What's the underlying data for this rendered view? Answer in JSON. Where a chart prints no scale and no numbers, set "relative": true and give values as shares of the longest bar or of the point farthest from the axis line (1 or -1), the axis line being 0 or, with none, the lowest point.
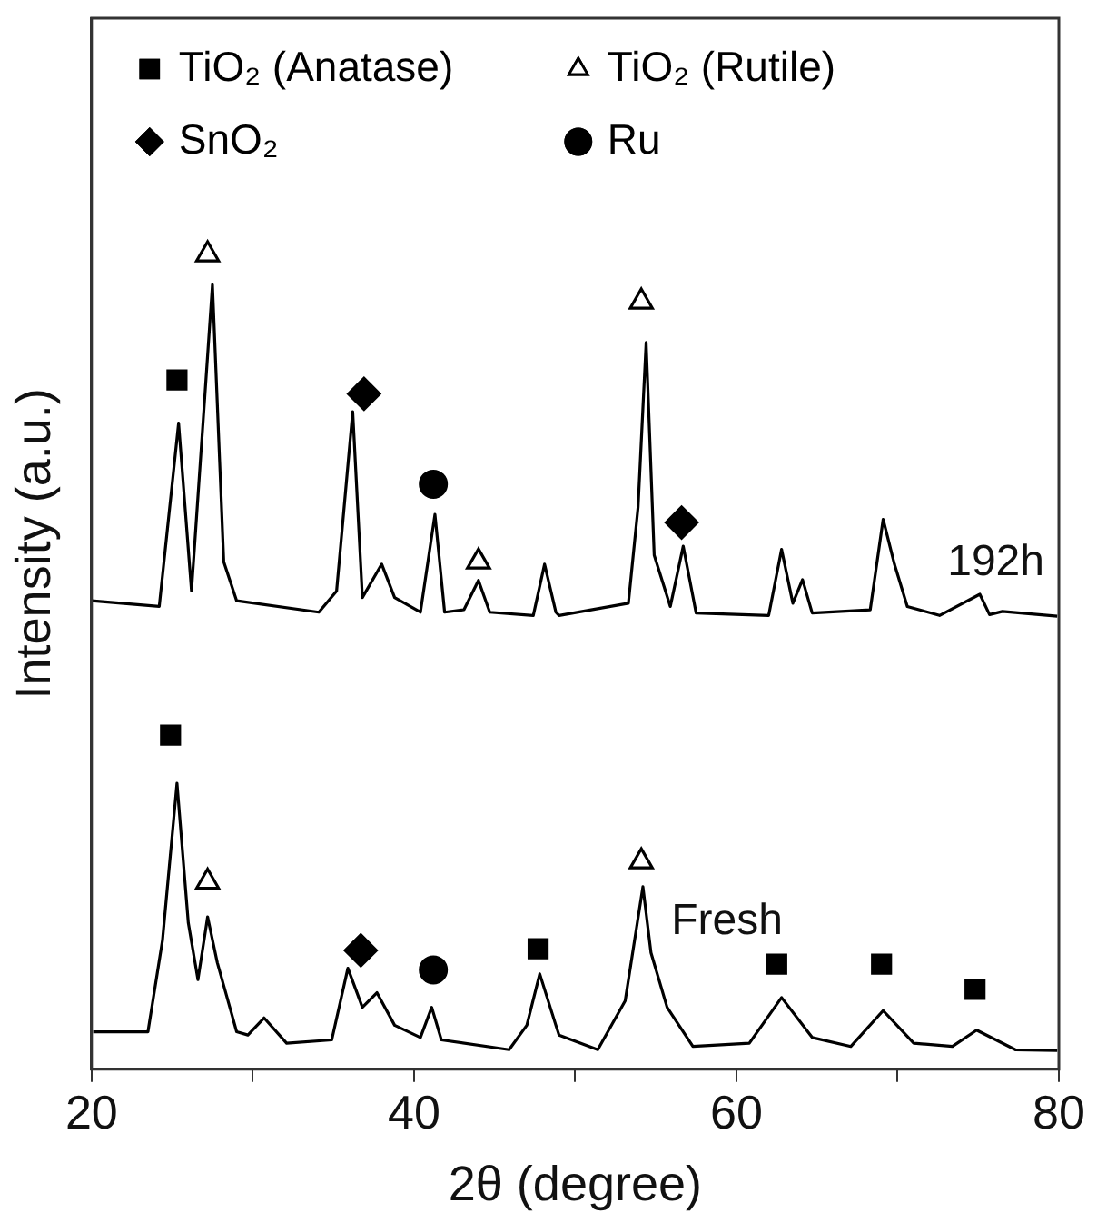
{
  "chart_data": {
    "type": "line",
    "relative": true,
    "xlabel": "2θ (degree)",
    "ylabel": "Intensity (a.u.)",
    "xlim": [
      20,
      80
    ],
    "xticks": [
      20,
      {
        "value": 30,
        "label": null
      },
      40,
      {
        "value": 50,
        "label": null
      },
      60,
      {
        "value": 70,
        "label": null
      },
      80
    ],
    "grid": false,
    "legend": "top",
    "line_style": "solid",
    "series": [
      {
        "name": "192h",
        "type": "line",
        "color": "#000000",
        "marker": "none",
        "x": [
          20,
          24.2,
          25.4,
          26.2,
          27.5,
          28.2,
          29.0,
          34.1,
          35.2,
          36.2,
          36.8,
          38.0,
          38.8,
          40.4,
          41.3,
          41.9,
          43.1,
          44.0,
          44.7,
          47.4,
          48.1,
          48.8,
          49.0,
          53.3,
          53.9,
          54.4,
          54.9,
          55.9,
          56.7,
          57.5,
          62.0,
          62.8,
          63.5,
          64.1,
          64.7,
          68.3,
          69.1,
          69.8,
          70.6,
          72.6,
          75.1,
          75.7,
          76.5,
          79.9
        ],
        "values": [
          0.575,
          0.568,
          0.793,
          0.587,
          0.963,
          0.623,
          0.575,
          0.561,
          0.587,
          0.807,
          0.579,
          0.62,
          0.579,
          0.561,
          0.681,
          0.561,
          0.564,
          0.6,
          0.561,
          0.557,
          0.62,
          0.561,
          0.557,
          0.572,
          0.69,
          0.892,
          0.631,
          0.568,
          0.642,
          0.56,
          0.557,
          0.638,
          0.572,
          0.601,
          0.56,
          0.564,
          0.675,
          0.62,
          0.568,
          0.557,
          0.583,
          0.558,
          0.562,
          0.556
        ]
      },
      {
        "name": "Fresh",
        "type": "line",
        "color": "#000000",
        "marker": "none",
        "x": [
          20.1,
          23.5,
          24.4,
          25.3,
          26.0,
          26.6,
          27.2,
          27.8,
          29.0,
          29.7,
          30.7,
          32.1,
          34.9,
          35.9,
          36.8,
          37.7,
          38.8,
          40.4,
          41.1,
          41.7,
          45.9,
          47.0,
          47.8,
          48.8,
          49.0,
          51.4,
          53.1,
          54.2,
          54.7,
          55.7,
          57.3,
          60.8,
          62.8,
          64.7,
          67.1,
          69.1,
          71.0,
          73.4,
          74.9,
          77.3,
          79.9
        ],
        "values": [
          0.046,
          0.046,
          0.158,
          0.351,
          0.18,
          0.11,
          0.187,
          0.131,
          0.046,
          0.042,
          0.063,
          0.032,
          0.036,
          0.124,
          0.076,
          0.094,
          0.054,
          0.039,
          0.076,
          0.036,
          0.024,
          0.054,
          0.117,
          0.054,
          0.042,
          0.024,
          0.084,
          0.224,
          0.143,
          0.076,
          0.028,
          0.032,
          0.088,
          0.039,
          0.028,
          0.072,
          0.032,
          0.028,
          0.048,
          0.024,
          0.023
        ]
      },
      {
        "name": "TiO₂ (Anatase)",
        "type": "scatter",
        "color": "#000000",
        "marker": "square",
        "x": [
          25.3,
          24.9,
          47.7,
          62.5,
          69.0,
          74.8
        ],
        "values": [
          0.846,
          0.41,
          0.148,
          0.129,
          0.129,
          0.098
        ]
      },
      {
        "name": "TiO₂ (Rutile)",
        "type": "scatter",
        "color": "#000000",
        "marker": "triangle",
        "x": [
          27.2,
          44.0,
          54.1,
          27.2,
          54.1
        ],
        "values": [
          1,
          0.623,
          0.942,
          0.23,
          0.255
        ]
      },
      {
        "name": "SnO₂",
        "type": "scatter",
        "color": "#000000",
        "marker": "diamond",
        "x": [
          36.9,
          56.6,
          36.7
        ],
        "values": [
          0.829,
          0.671,
          0.146
        ]
      },
      {
        "name": "Ru",
        "type": "scatter",
        "color": "#000000",
        "marker": "circle",
        "x": [
          41.2,
          41.2
        ],
        "values": [
          0.718,
          0.122
        ]
      }
    ]
  }
}
